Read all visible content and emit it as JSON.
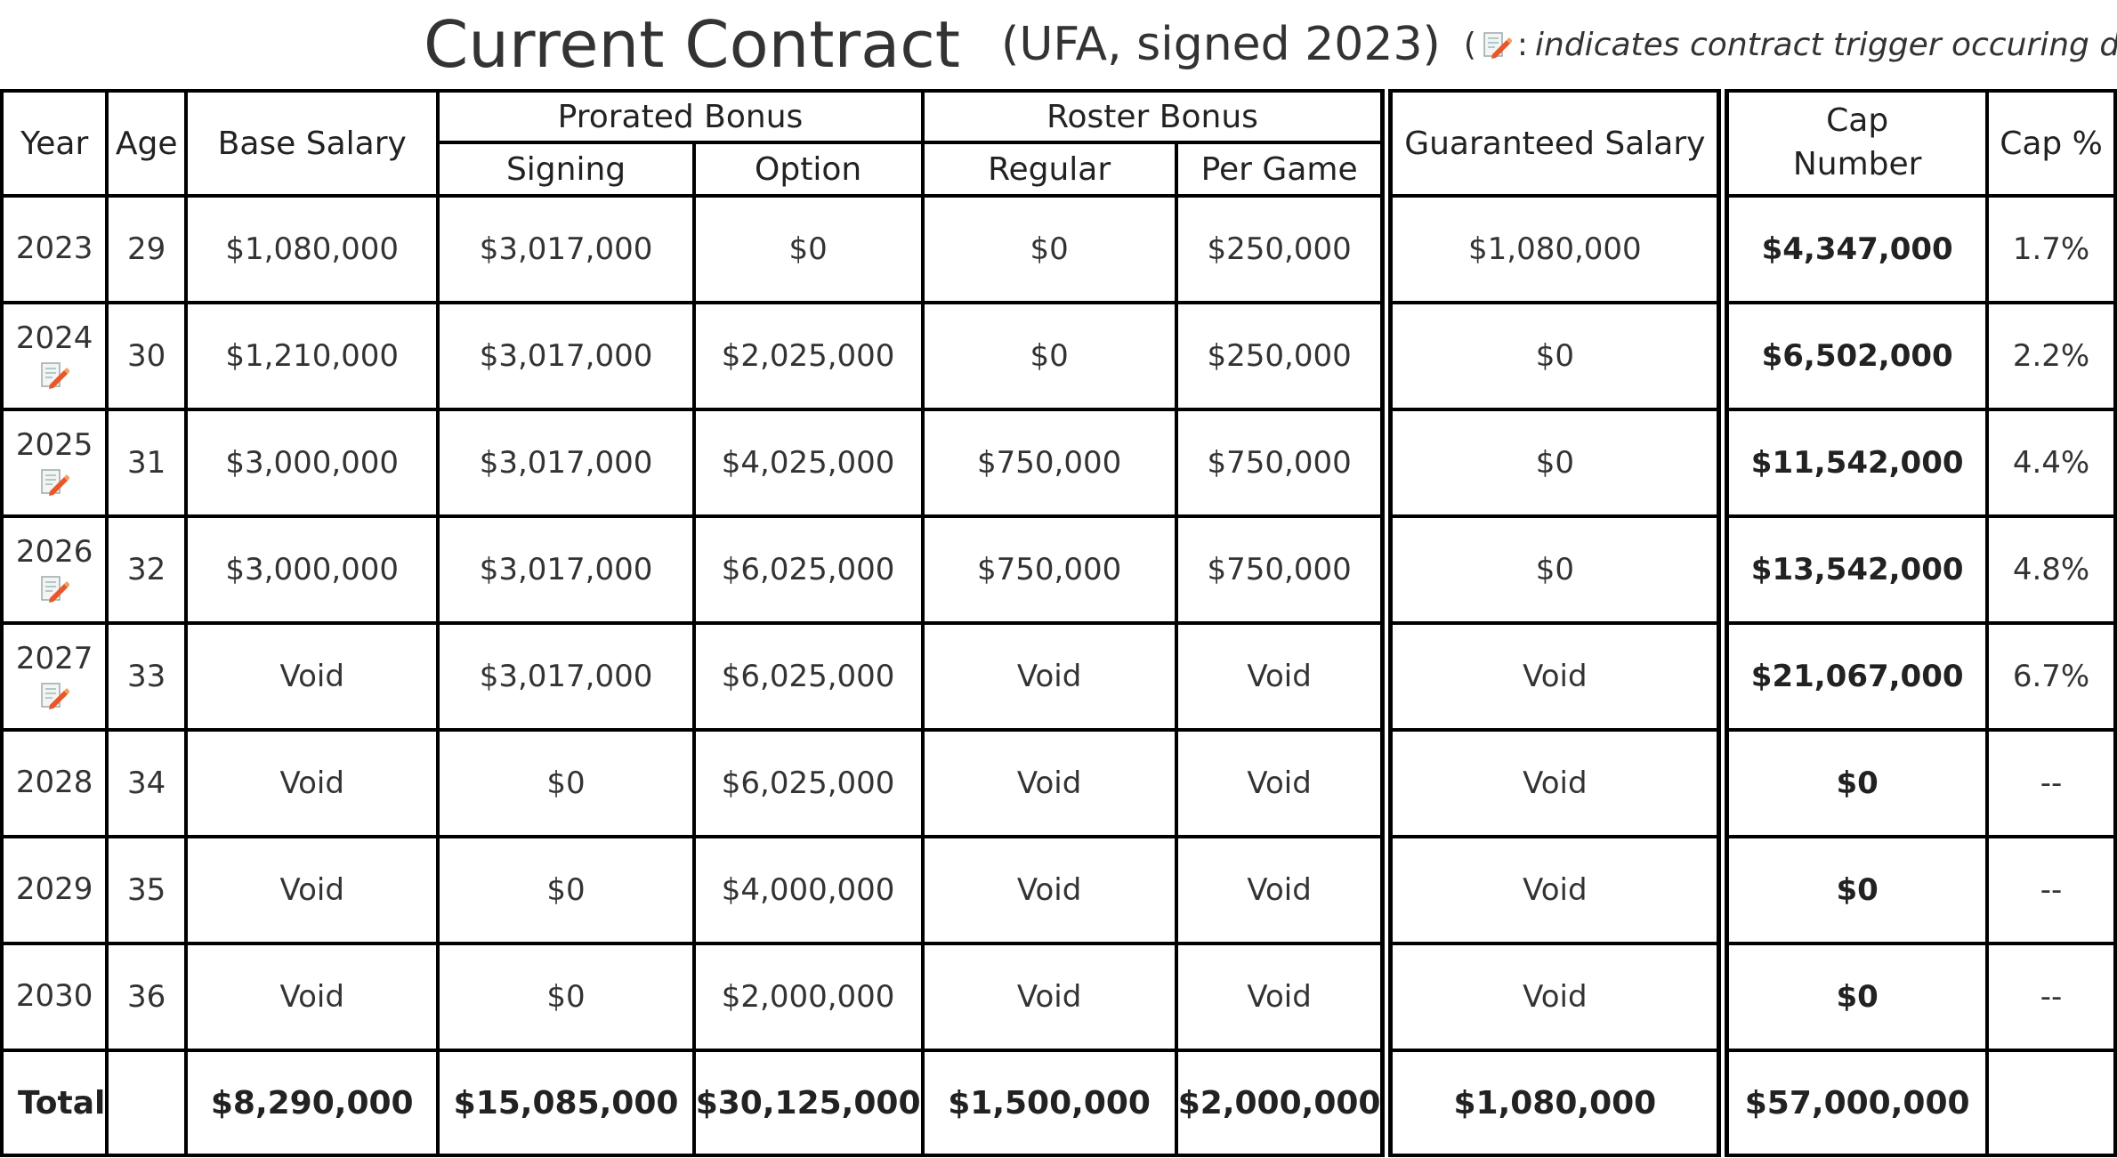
{
  "title": {
    "main": "Current Contract",
    "sub": "(UFA, signed 2023)",
    "note_open": "(",
    "note_colon": ":",
    "note_text": "indicates contract trigger occuring during th",
    "icon": "contract-trigger-icon"
  },
  "headers": {
    "year": "Year",
    "age": "Age",
    "base_salary": "Base Salary",
    "prorated_bonus": "Prorated Bonus",
    "signing": "Signing",
    "option": "Option",
    "roster_bonus": "Roster Bonus",
    "regular": "Regular",
    "per_game": "Per Game",
    "guaranteed_salary": "Guaranteed Salary",
    "cap_number_line1": "Cap",
    "cap_number_line2": "Number",
    "cap_pct": "Cap %"
  },
  "rows": [
    {
      "year": "2023",
      "trigger": false,
      "age": "29",
      "base": "$1,080,000",
      "signing": "$3,017,000",
      "option": "$0",
      "regular": "$0",
      "per_game": "$250,000",
      "guaranteed": "$1,080,000",
      "cap": "$4,347,000",
      "cap_pct": "1.7%"
    },
    {
      "year": "2024",
      "trigger": true,
      "age": "30",
      "base": "$1,210,000",
      "signing": "$3,017,000",
      "option": "$2,025,000",
      "regular": "$0",
      "per_game": "$250,000",
      "guaranteed": "$0",
      "cap": "$6,502,000",
      "cap_pct": "2.2%"
    },
    {
      "year": "2025",
      "trigger": true,
      "age": "31",
      "base": "$3,000,000",
      "signing": "$3,017,000",
      "option": "$4,025,000",
      "regular": "$750,000",
      "per_game": "$750,000",
      "guaranteed": "$0",
      "cap": "$11,542,000",
      "cap_pct": "4.4%"
    },
    {
      "year": "2026",
      "trigger": true,
      "age": "32",
      "base": "$3,000,000",
      "signing": "$3,017,000",
      "option": "$6,025,000",
      "regular": "$750,000",
      "per_game": "$750,000",
      "guaranteed": "$0",
      "cap": "$13,542,000",
      "cap_pct": "4.8%"
    },
    {
      "year": "2027",
      "trigger": true,
      "age": "33",
      "base": "Void",
      "signing": "$3,017,000",
      "option": "$6,025,000",
      "regular": "Void",
      "per_game": "Void",
      "guaranteed": "Void",
      "cap": "$21,067,000",
      "cap_pct": "6.7%"
    },
    {
      "year": "2028",
      "trigger": false,
      "age": "34",
      "base": "Void",
      "signing": "$0",
      "option": "$6,025,000",
      "regular": "Void",
      "per_game": "Void",
      "guaranteed": "Void",
      "cap": "$0",
      "cap_pct": "--"
    },
    {
      "year": "2029",
      "trigger": false,
      "age": "35",
      "base": "Void",
      "signing": "$0",
      "option": "$4,000,000",
      "regular": "Void",
      "per_game": "Void",
      "guaranteed": "Void",
      "cap": "$0",
      "cap_pct": "--"
    },
    {
      "year": "2030",
      "trigger": false,
      "age": "36",
      "base": "Void",
      "signing": "$0",
      "option": "$2,000,000",
      "regular": "Void",
      "per_game": "Void",
      "guaranteed": "Void",
      "cap": "$0",
      "cap_pct": "--"
    }
  ],
  "total": {
    "label": "Total",
    "age": "",
    "base": "$8,290,000",
    "signing": "$15,085,000",
    "option": "$30,125,000",
    "regular": "$1,500,000",
    "per_game": "$2,000,000",
    "guaranteed": "$1,080,000",
    "cap": "$57,000,000",
    "cap_pct": ""
  }
}
